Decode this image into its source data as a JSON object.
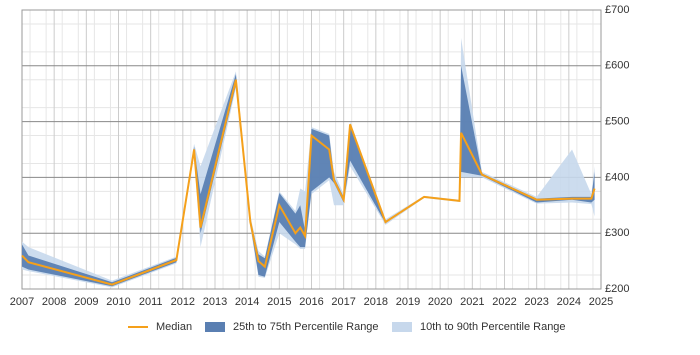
{
  "chart_data": {
    "type": "line",
    "x": [
      2007.0,
      2007.2,
      2009.8,
      2011.8,
      2012.35,
      2012.55,
      2013.65,
      2014.1,
      2014.35,
      2014.55,
      2015.0,
      2015.5,
      2015.65,
      2015.8,
      2016.0,
      2016.55,
      2016.7,
      2017.0,
      2017.2,
      2018.3,
      2019.5,
      2020.6,
      2020.65,
      2021.3,
      2023.0,
      2024.1,
      2024.7,
      2024.8
    ],
    "series": [
      {
        "name": "Median",
        "color": "#f5a01a",
        "values": [
          260,
          248,
          208,
          252,
          450,
          310,
          575,
          320,
          250,
          240,
          350,
          300,
          310,
          295,
          475,
          450,
          395,
          360,
          495,
          320,
          365,
          358,
          480,
          405,
          360,
          362,
          362,
          380
        ]
      },
      {
        "name": "25th to 75th Percentile Range",
        "color": "#5a7fb2",
        "low": [
          240,
          235,
          205,
          248,
          445,
          300,
          565,
          315,
          225,
          222,
          320,
          285,
          275,
          275,
          375,
          400,
          390,
          355,
          430,
          318,
          365,
          358,
          410,
          403,
          355,
          360,
          355,
          360
        ],
        "high": [
          280,
          260,
          212,
          256,
          455,
          370,
          585,
          325,
          262,
          255,
          372,
          335,
          350,
          305,
          487,
          475,
          400,
          365,
          495,
          322,
          365,
          358,
          600,
          407,
          362,
          365,
          365,
          410
        ]
      },
      {
        "name": "10th to 90th Percentile Range",
        "color": "#c7d8ec",
        "low": [
          235,
          232,
          203,
          246,
          440,
          275,
          560,
          310,
          222,
          220,
          300,
          280,
          272,
          272,
          370,
          395,
          350,
          350,
          420,
          315,
          363,
          356,
          400,
          400,
          353,
          355,
          352,
          330
        ],
        "high": [
          285,
          275,
          215,
          258,
          460,
          420,
          590,
          330,
          268,
          258,
          375,
          340,
          380,
          375,
          490,
          478,
          410,
          370,
          500,
          325,
          367,
          360,
          650,
          410,
          365,
          450,
          370,
          420
        ]
      }
    ],
    "xlim": [
      2007,
      2025
    ],
    "xticks": [
      2007,
      2008,
      2009,
      2010,
      2011,
      2012,
      2013,
      2014,
      2015,
      2016,
      2017,
      2018,
      2019,
      2020,
      2021,
      2022,
      2023,
      2024,
      2025
    ],
    "ylim": [
      200,
      700
    ],
    "yticks": [
      {
        "value": 200,
        "label": "£200"
      },
      {
        "value": 300,
        "label": "£300"
      },
      {
        "value": 400,
        "label": "£400"
      },
      {
        "value": 500,
        "label": "£500"
      },
      {
        "value": 600,
        "label": "£600"
      },
      {
        "value": 700,
        "label": "£700"
      }
    ],
    "grid": true
  }
}
